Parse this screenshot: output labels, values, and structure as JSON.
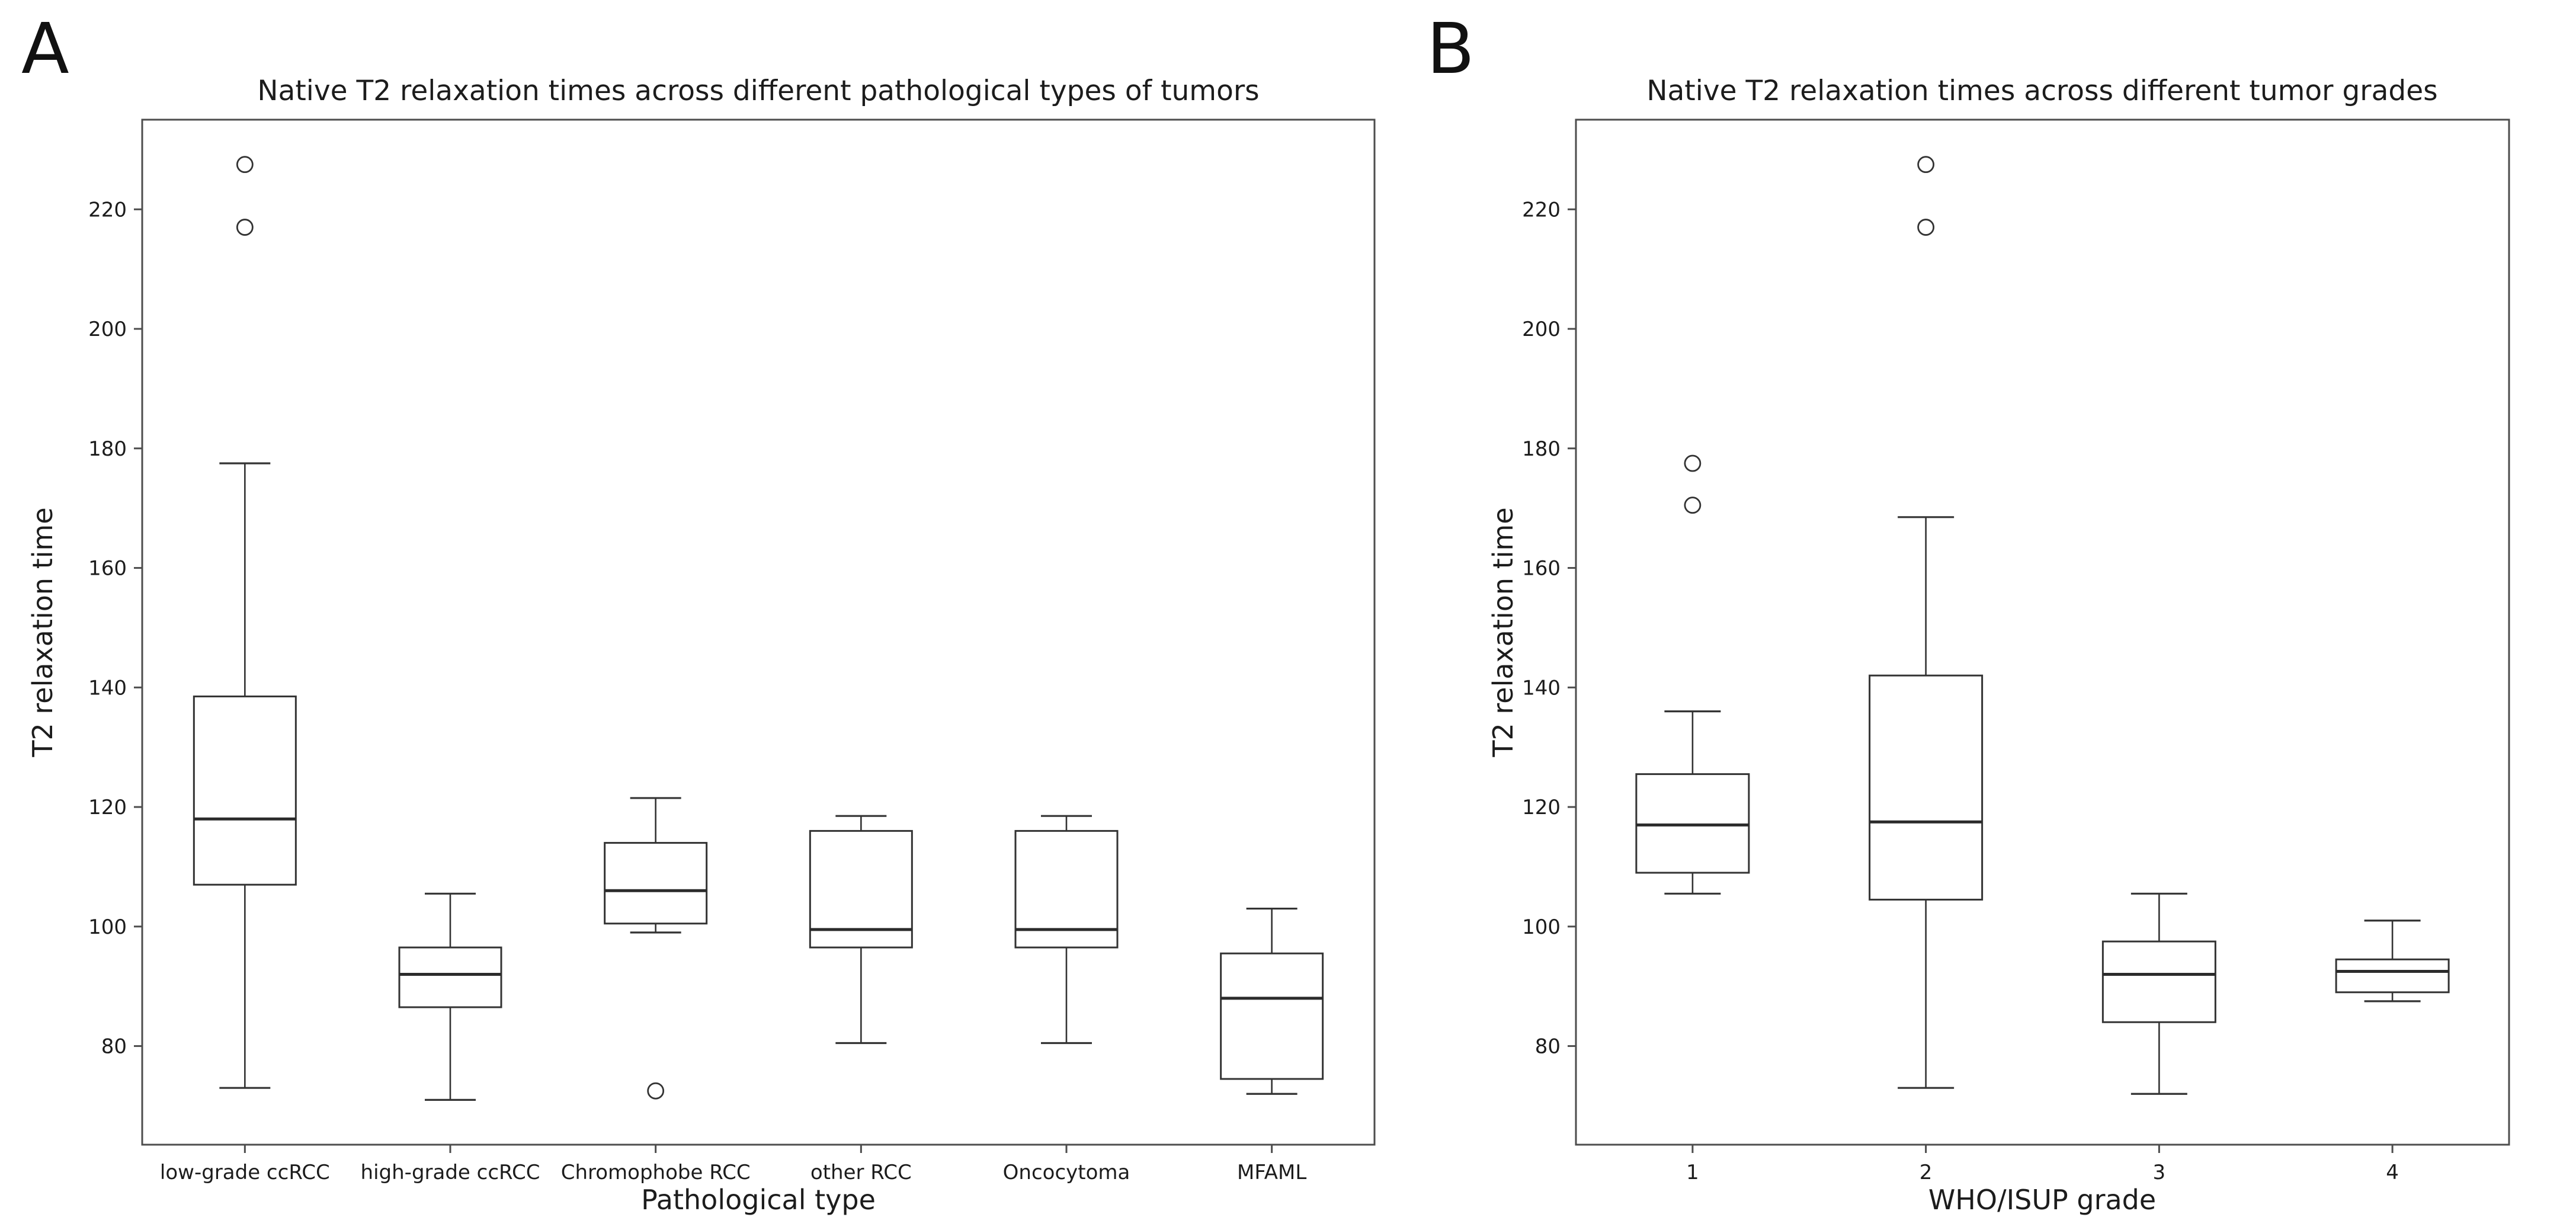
{
  "colors": {
    "background": "#ffffff",
    "text": "#1c1c1c",
    "box_line": "#333333",
    "median_line": "#2b2b2b",
    "frame": "#4d4d4d"
  },
  "chart_data": [
    {
      "type": "boxplot",
      "panel_letter": "A",
      "title": "Native T2 relaxation times across different pathological types of tumors",
      "xlabel": "Pathological type",
      "ylabel": "T2 relaxation time",
      "categories": [
        "low-grade ccRCC",
        "high-grade ccRCC",
        "Chromophobe RCC",
        "other RCC",
        "Oncocytoma",
        "MFAML"
      ],
      "yticks": [
        80,
        100,
        120,
        140,
        160,
        180,
        200,
        220
      ],
      "ylim": [
        63.5,
        235
      ],
      "grid": false,
      "legend": null,
      "boxes": [
        {
          "category": "low-grade ccRCC",
          "whisker_low": 73,
          "q1": 107,
          "median": 118,
          "q3": 138.5,
          "whisker_high": 177.5,
          "outliers": [
            217,
            227.5
          ]
        },
        {
          "category": "high-grade ccRCC",
          "whisker_low": 71,
          "q1": 86.5,
          "median": 92,
          "q3": 96.5,
          "whisker_high": 105.5,
          "outliers": []
        },
        {
          "category": "Chromophobe RCC",
          "whisker_low": 99,
          "q1": 100.5,
          "median": 106,
          "q3": 114,
          "whisker_high": 121.5,
          "outliers": [
            72.5
          ]
        },
        {
          "category": "other RCC",
          "whisker_low": 80.5,
          "q1": 96.5,
          "median": 99.5,
          "q3": 116,
          "whisker_high": 118.5,
          "outliers": []
        },
        {
          "category": "Oncocytoma",
          "whisker_low": 80.5,
          "q1": 96.5,
          "median": 99.5,
          "q3": 116,
          "whisker_high": 118.5,
          "outliers": []
        },
        {
          "category": "MFAML",
          "whisker_low": 72,
          "q1": 74.5,
          "median": 88,
          "q3": 95.5,
          "whisker_high": 103,
          "outliers": []
        }
      ]
    },
    {
      "type": "boxplot",
      "panel_letter": "B",
      "title": "Native T2 relaxation times across different tumor grades",
      "xlabel": "WHO/ISUP grade",
      "ylabel": "T2 relaxation time",
      "categories": [
        "1",
        "2",
        "3",
        "4"
      ],
      "yticks": [
        80,
        100,
        120,
        140,
        160,
        180,
        200,
        220
      ],
      "ylim": [
        63.5,
        235
      ],
      "grid": false,
      "legend": null,
      "boxes": [
        {
          "category": "1",
          "whisker_low": 105.5,
          "q1": 109,
          "median": 117,
          "q3": 125.5,
          "whisker_high": 136,
          "outliers": [
            170.5,
            177.5
          ]
        },
        {
          "category": "2",
          "whisker_low": 73,
          "q1": 104.5,
          "median": 117.5,
          "q3": 142,
          "whisker_high": 168.5,
          "outliers": [
            217,
            227.5
          ]
        },
        {
          "category": "3",
          "whisker_low": 72,
          "q1": 84,
          "median": 92,
          "q3": 97.5,
          "whisker_high": 105.5,
          "outliers": []
        },
        {
          "category": "4",
          "whisker_low": 87.5,
          "q1": 89,
          "median": 92.5,
          "q3": 94.5,
          "whisker_high": 101,
          "outliers": []
        }
      ]
    }
  ]
}
